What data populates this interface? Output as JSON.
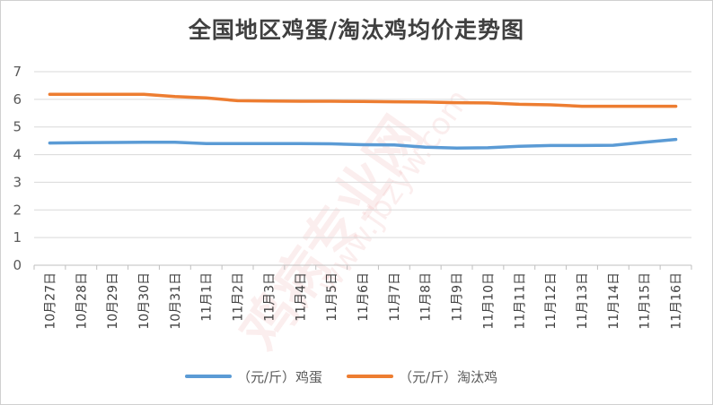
{
  "title": "全国地区鸡蛋/淘汰鸡均价走势图",
  "watermark": {
    "text_main": "鸡病专业网",
    "text_url": "www.jbzyw.com"
  },
  "colors": {
    "egg": "#5B9BD5",
    "hen": "#ED7D31",
    "grid": "#d9d9d9",
    "axis": "#bfbfbf"
  },
  "chart_data": {
    "type": "line",
    "title": "全国地区鸡蛋/淘汰鸡均价走势图",
    "xlabel": "",
    "ylabel": "",
    "ylim": [
      0,
      7
    ],
    "yticks": [
      0,
      1,
      2,
      3,
      4,
      5,
      6,
      7
    ],
    "grid": true,
    "legend_position": "bottom",
    "categories": [
      "10月27日",
      "10月28日",
      "10月29日",
      "10月30日",
      "10月31日",
      "11月1日",
      "11月2日",
      "11月3日",
      "11月4日",
      "11月5日",
      "11月6日",
      "11月7日",
      "11月8日",
      "11月9日",
      "11月10日",
      "11月11日",
      "11月12日",
      "11月13日",
      "11月14日",
      "11月15日",
      "11月16日"
    ],
    "series": [
      {
        "name": "（元/斤）鸡蛋",
        "color": "#5B9BD5",
        "values": [
          4.42,
          4.43,
          4.44,
          4.45,
          4.45,
          4.4,
          4.4,
          4.4,
          4.4,
          4.39,
          4.36,
          4.35,
          4.27,
          4.24,
          4.25,
          4.3,
          4.33,
          4.33,
          4.34,
          4.45,
          4.55
        ]
      },
      {
        "name": "（元/斤）淘汰鸡",
        "color": "#ED7D31",
        "values": [
          6.18,
          6.18,
          6.18,
          6.18,
          6.1,
          6.05,
          5.95,
          5.94,
          5.93,
          5.93,
          5.92,
          5.91,
          5.9,
          5.88,
          5.87,
          5.82,
          5.8,
          5.75,
          5.75,
          5.75,
          5.75
        ]
      }
    ]
  }
}
